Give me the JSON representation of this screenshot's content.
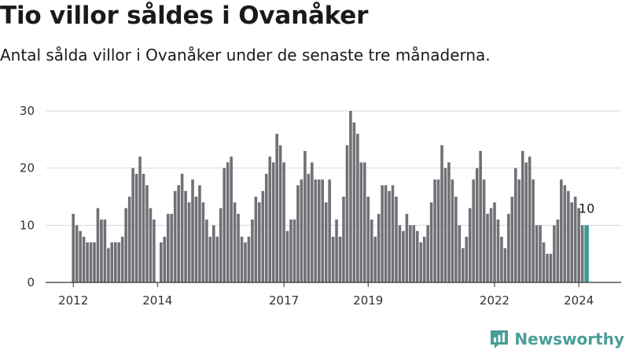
{
  "header": {
    "title": "Tio villor såldes i Ovanåker",
    "subtitle": "Antal sålda villor i Ovanåker under de senaste tre månaderna."
  },
  "brand": {
    "name": "Newsworthy",
    "icon": "newsworthy-logo-icon",
    "color": "#4a9e98"
  },
  "chart_data": {
    "type": "bar",
    "title": "Tio villor såldes i Ovanåker",
    "subtitle": "Antal sålda villor i Ovanåker under de senaste tre månaderna.",
    "xlabel": "",
    "ylabel": "",
    "ylim": [
      0,
      30
    ],
    "yticks": [
      0,
      10,
      20,
      30
    ],
    "grid": true,
    "legend": "none",
    "bar_color": "#717076",
    "highlight_color": "#3d9c95",
    "start_period": "2012-01",
    "xticks": [
      {
        "label": "2012",
        "index": 0
      },
      {
        "label": "2014",
        "index": 24
      },
      {
        "label": "2017",
        "index": 60
      },
      {
        "label": "2019",
        "index": 84
      },
      {
        "label": "2022",
        "index": 120
      },
      {
        "label": "2024",
        "index": 144
      }
    ],
    "values": [
      12,
      10,
      9,
      8,
      7,
      7,
      7,
      13,
      11,
      11,
      6,
      7,
      7,
      7,
      8,
      13,
      15,
      20,
      19,
      22,
      19,
      17,
      13,
      11,
      0,
      7,
      8,
      12,
      12,
      16,
      17,
      19,
      16,
      14,
      18,
      15,
      17,
      14,
      11,
      8,
      10,
      8,
      13,
      20,
      21,
      22,
      14,
      12,
      8,
      7,
      8,
      11,
      15,
      14,
      16,
      19,
      22,
      21,
      26,
      24,
      21,
      9,
      11,
      11,
      17,
      18,
      23,
      19,
      21,
      18,
      18,
      18,
      14,
      18,
      8,
      11,
      8,
      15,
      24,
      30,
      28,
      26,
      21,
      21,
      15,
      11,
      8,
      12,
      17,
      17,
      16,
      17,
      15,
      10,
      9,
      12,
      10,
      10,
      9,
      7,
      8,
      10,
      14,
      18,
      18,
      24,
      20,
      21,
      18,
      15,
      10,
      6,
      8,
      13,
      18,
      20,
      23,
      18,
      12,
      13,
      14,
      11,
      8,
      6,
      12,
      15,
      20,
      18,
      23,
      21,
      22,
      18,
      10,
      10,
      7,
      5,
      5,
      10,
      11,
      18,
      17,
      16,
      14,
      15,
      13,
      10,
      10
    ],
    "highlight_index": 146,
    "highlight_label": "10"
  }
}
